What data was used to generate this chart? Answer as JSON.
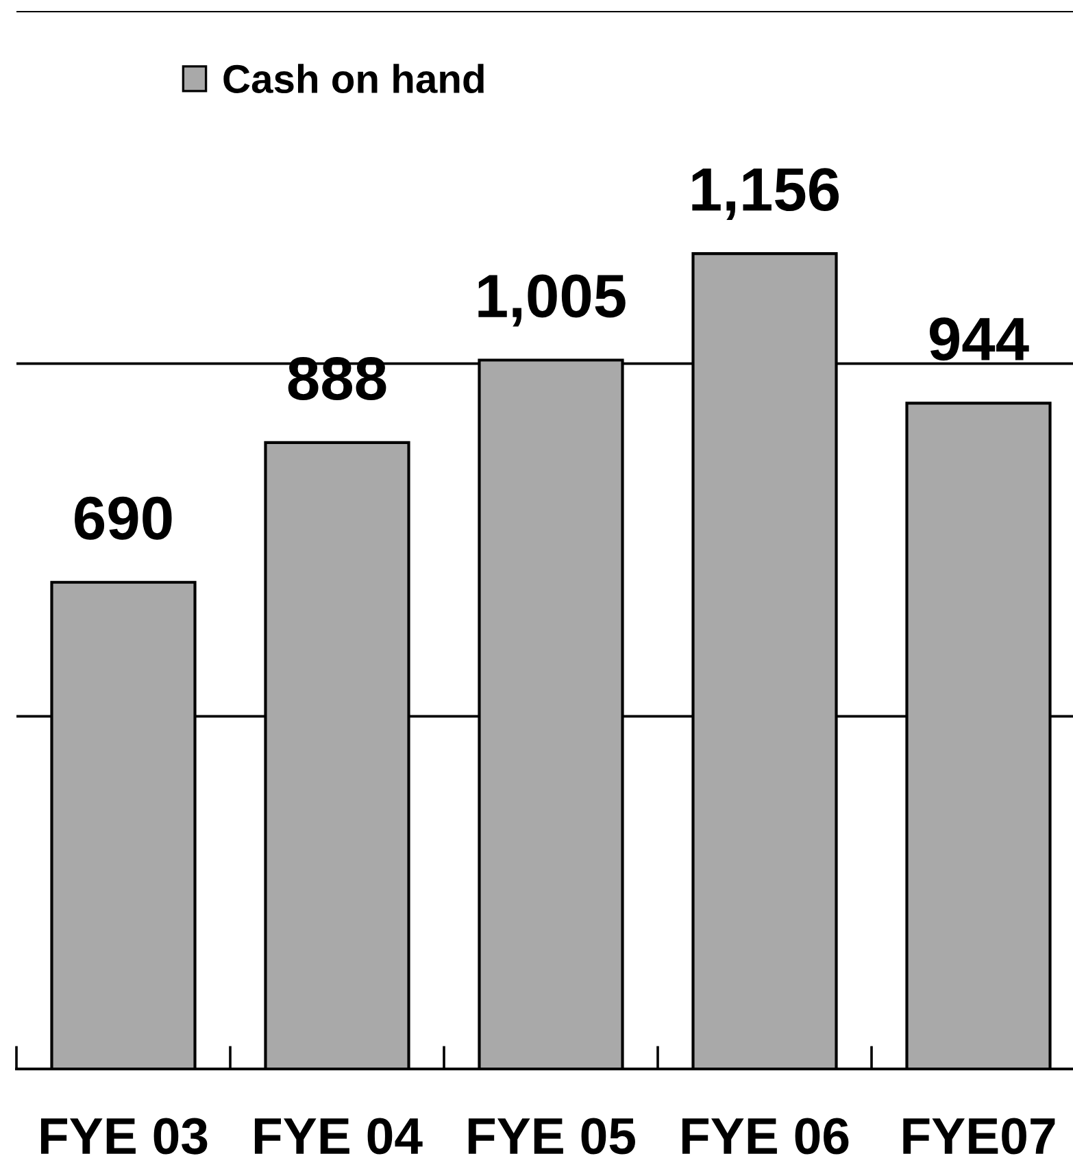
{
  "chart_data": {
    "type": "bar",
    "categories": [
      "FYE 03",
      "FYE 04",
      "FYE 05",
      "FYE 06",
      "FYE07"
    ],
    "series": [
      {
        "name": "Cash on hand",
        "color": "#a9a9a9",
        "values": [
          690,
          888,
          1005,
          1156,
          944
        ],
        "value_labels": [
          "690",
          "888",
          "1,005",
          "1,156",
          "944"
        ]
      }
    ],
    "ylim": [
      0,
      1500
    ],
    "yticks": [
      {
        "value": 0,
        "label": null
      },
      {
        "value": 500,
        "label": null
      },
      {
        "value": 1000,
        "label": null
      },
      {
        "value": 1500,
        "label": null
      }
    ],
    "grid": "y",
    "legend": "top left",
    "tick_labels": "x"
  }
}
